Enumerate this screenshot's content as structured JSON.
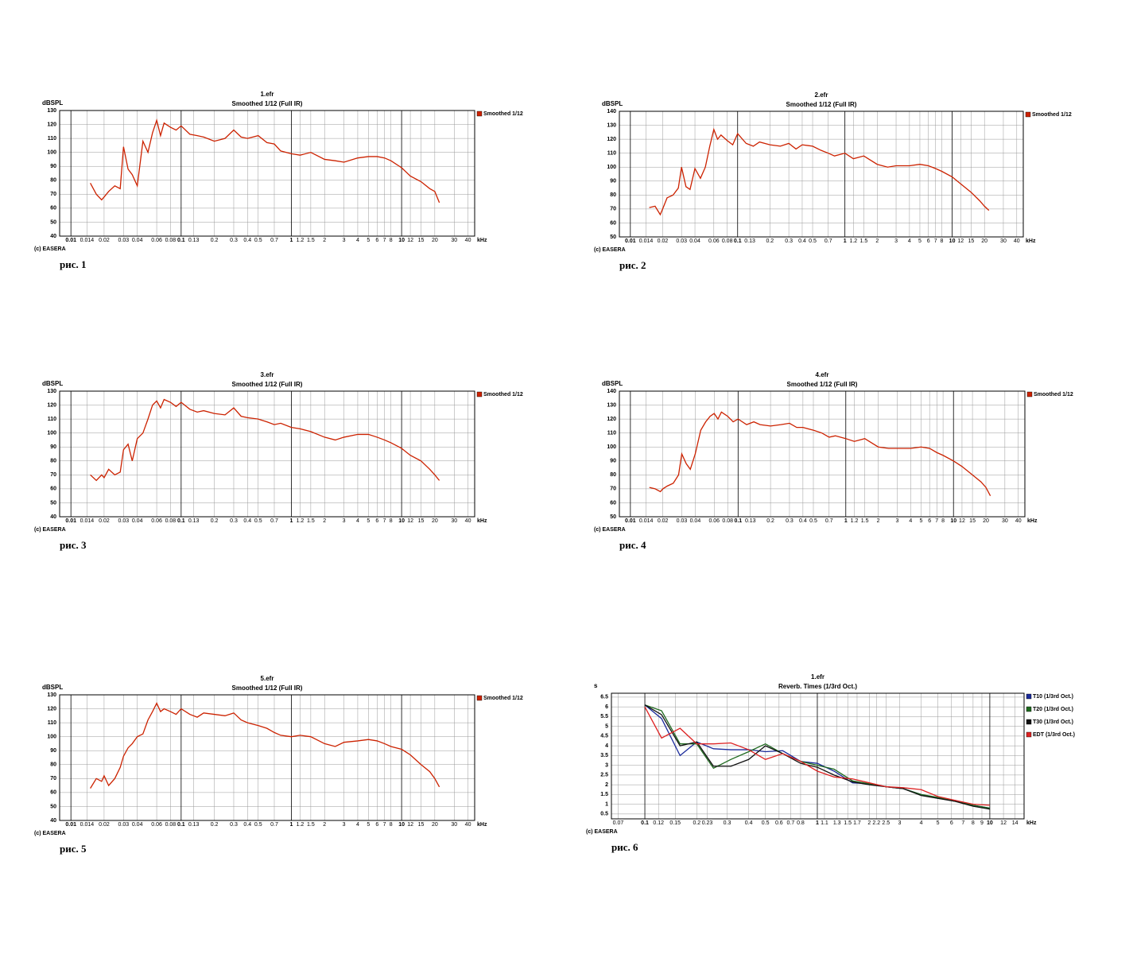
{
  "chart_data": [
    {
      "type": "line",
      "title": "1.efr",
      "subtitle": "Smoothed 1/12 (Full IR)",
      "y_label": "dBSPL",
      "x_label": "kHz",
      "credit": "(c) EASERA",
      "caption": "рис. 1",
      "log_x": true,
      "grid": true,
      "legend": "right",
      "xlim": [
        0.0079,
        46
      ],
      "xticks": [
        0.01,
        0.014,
        0.02,
        0.03,
        0.04,
        0.06,
        0.08,
        0.1,
        0.13,
        0.2,
        0.3,
        0.4,
        0.5,
        0.7,
        1,
        1.2,
        1.5,
        2,
        3,
        4,
        5,
        6,
        7,
        8,
        10,
        12,
        15,
        20,
        30,
        40
      ],
      "ylim": [
        40,
        130
      ],
      "yticks": [
        40,
        50,
        60,
        70,
        80,
        90,
        100,
        110,
        120,
        130
      ],
      "x": [
        0.015,
        0.017,
        0.019,
        0.02,
        0.022,
        0.025,
        0.028,
        0.03,
        0.033,
        0.036,
        0.04,
        0.045,
        0.05,
        0.055,
        0.06,
        0.065,
        0.07,
        0.08,
        0.09,
        0.1,
        0.12,
        0.14,
        0.16,
        0.2,
        0.25,
        0.3,
        0.35,
        0.4,
        0.5,
        0.6,
        0.7,
        0.8,
        1,
        1.2,
        1.5,
        2,
        2.5,
        3,
        4,
        5,
        6,
        7,
        8,
        10,
        12,
        15,
        18,
        20,
        22
      ],
      "series": [
        {
          "name": "Smoothed 1/12",
          "color": "#cc2200",
          "values": [
            78,
            70,
            66,
            68,
            72,
            76,
            74,
            104,
            88,
            84,
            76,
            108,
            100,
            114,
            123,
            112,
            121,
            118,
            116,
            119,
            113,
            112,
            111,
            108,
            110,
            116,
            111,
            110,
            112,
            107,
            106,
            101,
            99,
            98,
            100,
            95,
            94,
            93,
            96,
            97,
            97,
            96,
            94,
            89,
            83,
            79,
            74,
            72,
            64
          ]
        }
      ]
    },
    {
      "type": "line",
      "title": "2.efr",
      "subtitle": "Smoothed 1/12 (Full IR)",
      "y_label": "dBSPL",
      "x_label": "kHz",
      "credit": "(c) EASERA",
      "caption": "рис. 2",
      "log_x": true,
      "grid": true,
      "legend": "right",
      "xlim": [
        0.0079,
        46
      ],
      "xticks": [
        0.01,
        0.014,
        0.02,
        0.03,
        0.04,
        0.06,
        0.08,
        0.1,
        0.13,
        0.2,
        0.3,
        0.4,
        0.5,
        0.7,
        1,
        1.2,
        1.5,
        2,
        3,
        4,
        5,
        6,
        7,
        8,
        10,
        12,
        15,
        20,
        30,
        40
      ],
      "ylim": [
        50,
        140
      ],
      "yticks": [
        50,
        60,
        70,
        80,
        90,
        100,
        110,
        120,
        130,
        140
      ],
      "x": [
        0.015,
        0.017,
        0.019,
        0.02,
        0.022,
        0.025,
        0.028,
        0.03,
        0.033,
        0.036,
        0.04,
        0.045,
        0.05,
        0.055,
        0.06,
        0.065,
        0.07,
        0.08,
        0.09,
        0.1,
        0.12,
        0.14,
        0.16,
        0.2,
        0.25,
        0.3,
        0.35,
        0.4,
        0.5,
        0.6,
        0.7,
        0.8,
        1,
        1.2,
        1.5,
        2,
        2.5,
        3,
        4,
        5,
        6,
        7,
        8,
        10,
        12,
        15,
        18,
        20,
        22
      ],
      "series": [
        {
          "name": "Smoothed 1/12",
          "color": "#cc2200",
          "values": [
            71,
            72,
            66,
            70,
            78,
            80,
            85,
            100,
            86,
            84,
            99,
            92,
            100,
            115,
            127,
            120,
            123,
            119,
            116,
            124,
            117,
            115,
            118,
            116,
            115,
            117,
            113,
            116,
            115,
            112,
            110,
            108,
            110,
            106,
            108,
            102,
            100,
            101,
            101,
            102,
            101,
            99,
            97,
            93,
            88,
            82,
            76,
            72,
            69
          ]
        }
      ]
    },
    {
      "type": "line",
      "title": "3.efr",
      "subtitle": "Smoothed 1/12 (Full IR)",
      "y_label": "dBSPL",
      "x_label": "kHz",
      "credit": "(c) EASERA",
      "caption": "рис. 3",
      "log_x": true,
      "grid": true,
      "legend": "right",
      "xlim": [
        0.0079,
        46
      ],
      "xticks": [
        0.01,
        0.014,
        0.02,
        0.03,
        0.04,
        0.06,
        0.08,
        0.1,
        0.13,
        0.2,
        0.3,
        0.4,
        0.5,
        0.7,
        1,
        1.2,
        1.5,
        2,
        3,
        4,
        5,
        6,
        7,
        8,
        10,
        12,
        15,
        20,
        30,
        40
      ],
      "ylim": [
        40,
        130
      ],
      "yticks": [
        40,
        50,
        60,
        70,
        80,
        90,
        100,
        110,
        120,
        130
      ],
      "x": [
        0.015,
        0.017,
        0.019,
        0.02,
        0.022,
        0.025,
        0.028,
        0.03,
        0.033,
        0.036,
        0.04,
        0.045,
        0.05,
        0.055,
        0.06,
        0.065,
        0.07,
        0.08,
        0.09,
        0.1,
        0.12,
        0.14,
        0.16,
        0.2,
        0.25,
        0.3,
        0.35,
        0.4,
        0.5,
        0.6,
        0.7,
        0.8,
        1,
        1.2,
        1.5,
        2,
        2.5,
        3,
        4,
        5,
        6,
        7,
        8,
        10,
        12,
        15,
        18,
        20,
        22
      ],
      "series": [
        {
          "name": "Smoothed 1/12",
          "color": "#cc2200",
          "values": [
            70,
            66,
            70,
            68,
            74,
            70,
            72,
            88,
            92,
            80,
            96,
            100,
            110,
            120,
            123,
            118,
            124,
            122,
            119,
            122,
            117,
            115,
            116,
            114,
            113,
            118,
            112,
            111,
            110,
            108,
            106,
            107,
            104,
            103,
            101,
            97,
            95,
            97,
            99,
            99,
            97,
            95,
            93,
            89,
            84,
            80,
            74,
            70,
            66
          ]
        }
      ]
    },
    {
      "type": "line",
      "title": "4.efr",
      "subtitle": "Smoothed 1/12 (Full IR)",
      "y_label": "dBSPL",
      "x_label": "kHz",
      "credit": "(c) EASERA",
      "caption": "рис. 4",
      "log_x": true,
      "grid": true,
      "legend": "right",
      "xlim": [
        0.0079,
        46
      ],
      "xticks": [
        0.01,
        0.014,
        0.02,
        0.03,
        0.04,
        0.06,
        0.08,
        0.1,
        0.13,
        0.2,
        0.3,
        0.4,
        0.5,
        0.7,
        1,
        1.2,
        1.5,
        2,
        3,
        4,
        5,
        6,
        7,
        8,
        10,
        12,
        15,
        20,
        30,
        40
      ],
      "ylim": [
        50,
        140
      ],
      "yticks": [
        50,
        60,
        70,
        80,
        90,
        100,
        110,
        120,
        130,
        140
      ],
      "x": [
        0.015,
        0.017,
        0.019,
        0.02,
        0.022,
        0.025,
        0.028,
        0.03,
        0.033,
        0.036,
        0.04,
        0.045,
        0.05,
        0.055,
        0.06,
        0.065,
        0.07,
        0.08,
        0.09,
        0.1,
        0.12,
        0.14,
        0.16,
        0.2,
        0.25,
        0.3,
        0.35,
        0.4,
        0.5,
        0.6,
        0.7,
        0.8,
        1,
        1.2,
        1.5,
        2,
        2.5,
        3,
        4,
        5,
        6,
        7,
        8,
        10,
        12,
        15,
        18,
        20,
        22
      ],
      "series": [
        {
          "name": "Smoothed 1/12",
          "color": "#cc2200",
          "values": [
            71,
            70,
            68,
            70,
            72,
            74,
            80,
            95,
            88,
            84,
            95,
            112,
            118,
            122,
            124,
            120,
            125,
            122,
            118,
            120,
            116,
            118,
            116,
            115,
            116,
            117,
            114,
            114,
            112,
            110,
            107,
            108,
            106,
            104,
            106,
            100,
            99,
            99,
            99,
            100,
            99,
            96,
            94,
            90,
            86,
            80,
            75,
            71,
            65
          ]
        }
      ]
    },
    {
      "type": "line",
      "title": "5.efr",
      "subtitle": "Smoothed 1/12 (Full IR)",
      "y_label": "dBSPL",
      "x_label": "kHz",
      "credit": "(c) EASERA",
      "caption": "рис. 5",
      "log_x": true,
      "grid": true,
      "legend": "right",
      "xlim": [
        0.0079,
        46
      ],
      "xticks": [
        0.01,
        0.014,
        0.02,
        0.03,
        0.04,
        0.06,
        0.08,
        0.1,
        0.13,
        0.2,
        0.3,
        0.4,
        0.5,
        0.7,
        1,
        1.2,
        1.5,
        2,
        3,
        4,
        5,
        6,
        7,
        8,
        10,
        12,
        15,
        20,
        30,
        40
      ],
      "ylim": [
        40,
        130
      ],
      "yticks": [
        40,
        50,
        60,
        70,
        80,
        90,
        100,
        110,
        120,
        130
      ],
      "x": [
        0.015,
        0.017,
        0.019,
        0.02,
        0.022,
        0.025,
        0.028,
        0.03,
        0.033,
        0.036,
        0.04,
        0.045,
        0.05,
        0.055,
        0.06,
        0.065,
        0.07,
        0.08,
        0.09,
        0.1,
        0.12,
        0.14,
        0.16,
        0.2,
        0.25,
        0.3,
        0.35,
        0.4,
        0.5,
        0.6,
        0.7,
        0.8,
        1,
        1.2,
        1.5,
        2,
        2.5,
        3,
        4,
        5,
        6,
        7,
        8,
        10,
        12,
        15,
        18,
        20,
        22
      ],
      "series": [
        {
          "name": "Smoothed 1/12",
          "color": "#cc2200",
          "values": [
            63,
            70,
            68,
            72,
            65,
            70,
            78,
            86,
            92,
            95,
            100,
            102,
            112,
            118,
            124,
            118,
            120,
            118,
            116,
            120,
            116,
            114,
            117,
            116,
            115,
            117,
            112,
            110,
            108,
            106,
            103,
            101,
            100,
            101,
            100,
            95,
            93,
            96,
            97,
            98,
            97,
            95,
            93,
            91,
            87,
            80,
            75,
            70,
            64
          ]
        }
      ]
    },
    {
      "type": "line",
      "title": "1.efr",
      "subtitle": "Reverb. Times (1/3rd Oct.)",
      "y_label": "s",
      "x_label": "kHz",
      "credit": "(c) EASERA",
      "caption": "рис. 6",
      "log_x": true,
      "grid": true,
      "legend": "right",
      "xlim": [
        0.064,
        15.8
      ],
      "xticks": [
        0.07,
        0.1,
        0.12,
        0.15,
        0.2,
        0.23,
        0.3,
        0.4,
        0.5,
        0.6,
        0.7,
        0.8,
        1,
        1.1,
        1.3,
        1.5,
        1.7,
        2,
        2.2,
        2.5,
        3,
        4,
        5,
        6,
        7,
        8,
        9,
        10,
        12,
        14
      ],
      "ylim": [
        0.25,
        6.7
      ],
      "yticks": [
        0.5,
        1,
        1.5,
        2,
        2.5,
        3,
        3.5,
        4,
        4.5,
        5,
        5.5,
        6,
        6.5
      ],
      "x": [
        0.1,
        0.125,
        0.16,
        0.2,
        0.25,
        0.315,
        0.4,
        0.5,
        0.63,
        0.8,
        1,
        1.25,
        1.6,
        2,
        2.5,
        3.15,
        4,
        5,
        6.3,
        8,
        10
      ],
      "series": [
        {
          "name": "T10 (1/3rd Oct.)",
          "color": "#1a2a9a",
          "values": [
            6.1,
            5.4,
            3.5,
            4.2,
            3.85,
            3.8,
            3.8,
            3.7,
            3.75,
            3.2,
            3.1,
            2.7,
            2.1,
            2.05,
            1.9,
            1.8,
            1.5,
            1.3,
            1.2,
            0.95,
            0.8
          ]
        },
        {
          "name": "T20 (1/3rd Oct.)",
          "color": "#1f6a1f",
          "values": [
            6.1,
            5.8,
            4.1,
            4.1,
            2.85,
            3.3,
            3.7,
            4.1,
            3.6,
            3.2,
            3.0,
            2.8,
            2.2,
            2.05,
            1.9,
            1.8,
            1.5,
            1.35,
            1.15,
            0.95,
            0.8
          ]
        },
        {
          "name": "T30 (1/3rd Oct.)",
          "color": "#111111",
          "values": [
            6.1,
            5.6,
            4.0,
            4.2,
            2.95,
            2.95,
            3.3,
            4.0,
            3.6,
            3.1,
            2.9,
            2.5,
            2.15,
            2.0,
            1.9,
            1.8,
            1.45,
            1.3,
            1.15,
            0.9,
            0.75
          ]
        },
        {
          "name": "EDT (1/3rd Oct.)",
          "color": "#dd2222",
          "values": [
            6.0,
            4.4,
            4.9,
            4.1,
            4.1,
            4.15,
            3.8,
            3.3,
            3.6,
            3.2,
            2.7,
            2.4,
            2.3,
            2.1,
            1.9,
            1.85,
            1.75,
            1.4,
            1.2,
            1.0,
            0.95
          ]
        }
      ]
    }
  ]
}
